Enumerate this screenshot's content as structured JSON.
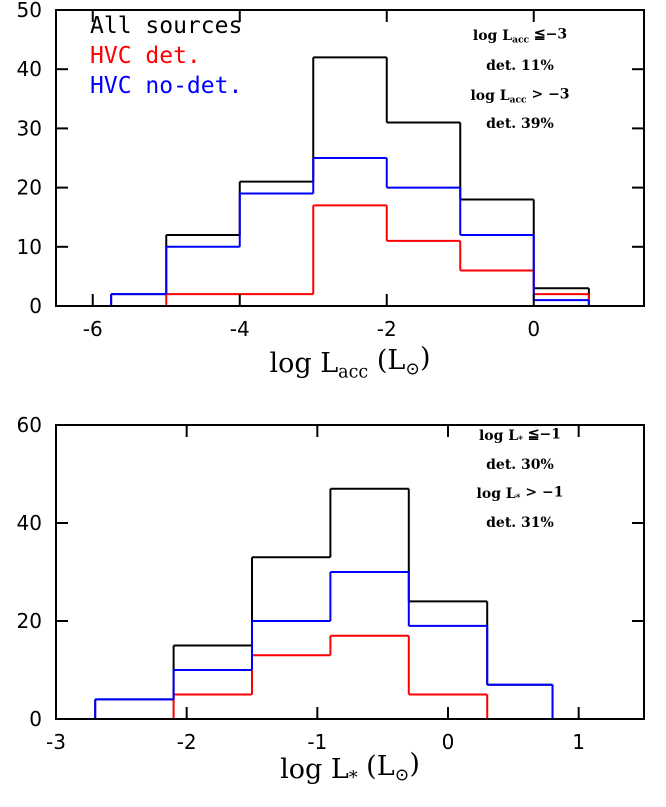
{
  "chart_data": [
    {
      "type": "histogram",
      "xlabel": [
        "log L",
        "acc",
        " (L",
        "⊙",
        ")"
      ],
      "bins": [
        -6.25,
        -5.75,
        -5,
        -4,
        -3,
        -2,
        -1,
        0,
        0.75,
        1.25
      ],
      "series": [
        {
          "name": "All sources",
          "color": "#000000",
          "values": [
            0,
            2,
            12,
            21,
            42,
            31,
            18,
            3,
            0
          ]
        },
        {
          "name": "HVC det.",
          "color": "#ff0000",
          "values": [
            0,
            0,
            2,
            2,
            17,
            11,
            6,
            2,
            0
          ]
        },
        {
          "name": "HVC no-det.",
          "color": "#0000ff",
          "values": [
            0,
            2,
            10,
            19,
            25,
            20,
            12,
            1,
            0
          ]
        }
      ],
      "legend": "upper left",
      "annotations": [
        [
          "log L",
          "acc",
          " ≦−3"
        ],
        [
          "det. 11%"
        ],
        [
          "log L",
          "acc",
          " > −3"
        ],
        [
          "det. 39%"
        ]
      ],
      "xlim": [
        -6.5,
        1.5
      ],
      "xticks": [
        -6,
        -4,
        -2,
        0
      ],
      "ylim": [
        0,
        50
      ],
      "yticks": [
        0,
        10,
        20,
        30,
        40,
        50
      ]
    },
    {
      "type": "histogram",
      "xlabel": [
        "log L",
        "*",
        " (L",
        "⊙",
        ")"
      ],
      "bins": [
        -3,
        -2.7,
        -2.1,
        -1.5,
        -0.9,
        -0.3,
        0.3,
        0.8,
        1.2
      ],
      "series": [
        {
          "color": "#000000",
          "values": [
            0,
            4,
            15,
            33,
            47,
            24,
            7,
            0
          ]
        },
        {
          "color": "#ff0000",
          "values": [
            0,
            0,
            5,
            13,
            17,
            5,
            0,
            0
          ]
        },
        {
          "color": "#0000ff",
          "values": [
            0,
            4,
            10,
            20,
            30,
            19,
            7,
            0
          ]
        }
      ],
      "annotations": [
        [
          "log L",
          "*",
          " ≦−1"
        ],
        [
          "det. 30%"
        ],
        [
          "log L",
          "*",
          " > −1"
        ],
        [
          "det. 31%"
        ]
      ],
      "xlim": [
        -3,
        1.5
      ],
      "xticks": [
        -3,
        -2,
        -1,
        0,
        1
      ],
      "ylim": [
        0,
        60
      ],
      "yticks": [
        0,
        20,
        40,
        60
      ]
    }
  ]
}
